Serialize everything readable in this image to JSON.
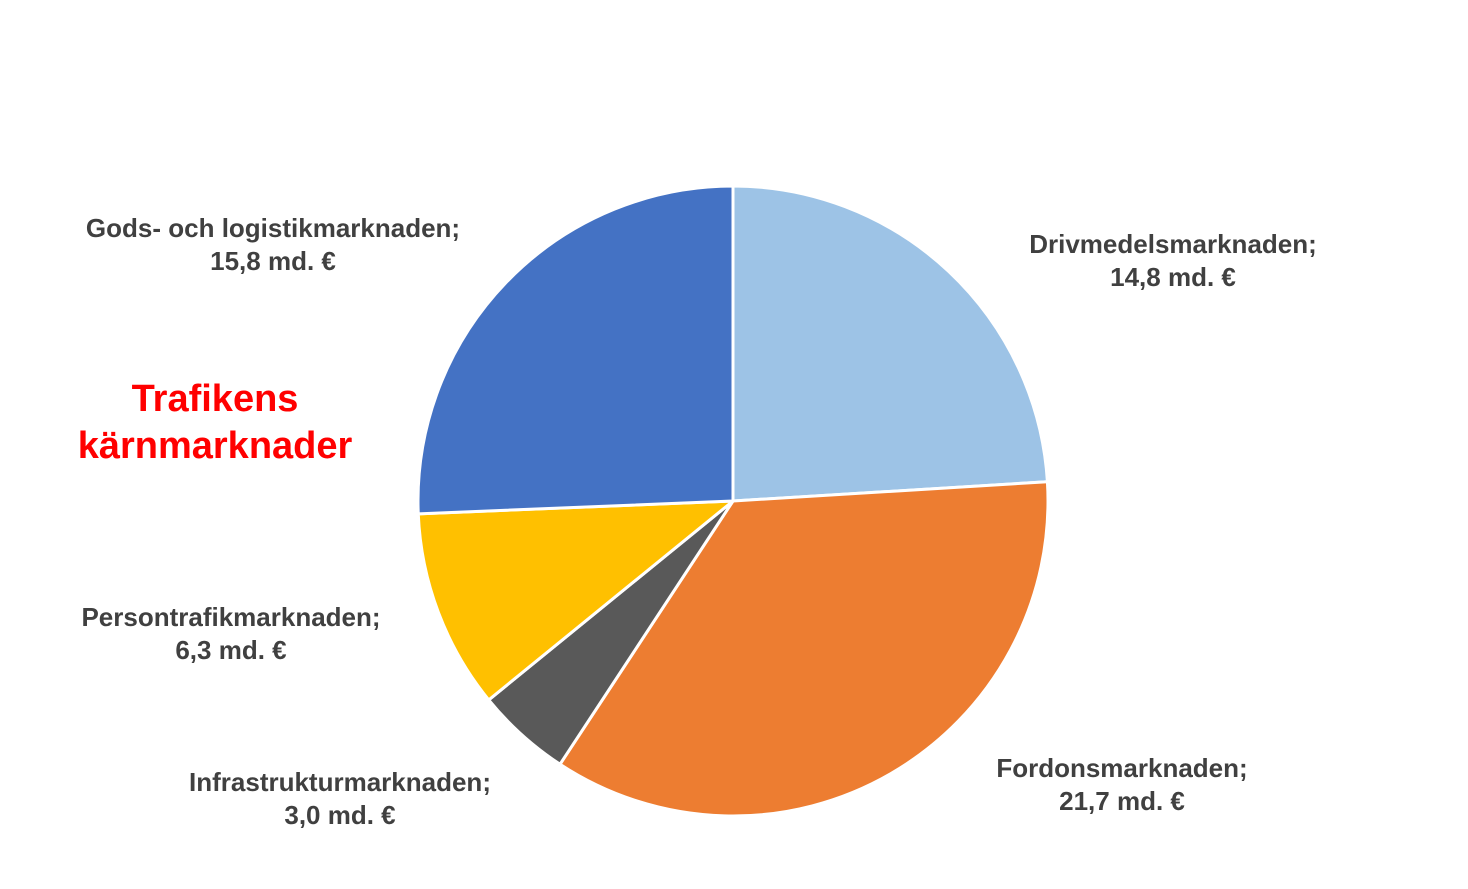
{
  "chart_data": {
    "type": "pie",
    "title": "Trafikens kärnmarknader",
    "title_color": "#ff0000",
    "unit": "md. €",
    "start": "top, clockwise",
    "slices": [
      {
        "label": "Drivmedelsmarknaden;",
        "value": 14.8,
        "value_text": "14,8 md. €",
        "color": "#9dc3e6"
      },
      {
        "label": "Fordonsmarknaden;",
        "value": 21.7,
        "value_text": "21,7 md. €",
        "color": "#ed7d31"
      },
      {
        "label": "Infrastrukturmarknaden;",
        "value": 3.0,
        "value_text": "3,0 md. €",
        "color": "#595959"
      },
      {
        "label": "Persontrafikmarknaden;",
        "value": 6.3,
        "value_text": "6,3 md. €",
        "color": "#ffc000"
      },
      {
        "label": "Gods- och logistikmarknaden;",
        "value": 15.8,
        "value_text": "15,8 md. €",
        "color": "#4472c4"
      }
    ]
  },
  "title_lines": [
    "Trafikens",
    "kärnmarknader"
  ]
}
